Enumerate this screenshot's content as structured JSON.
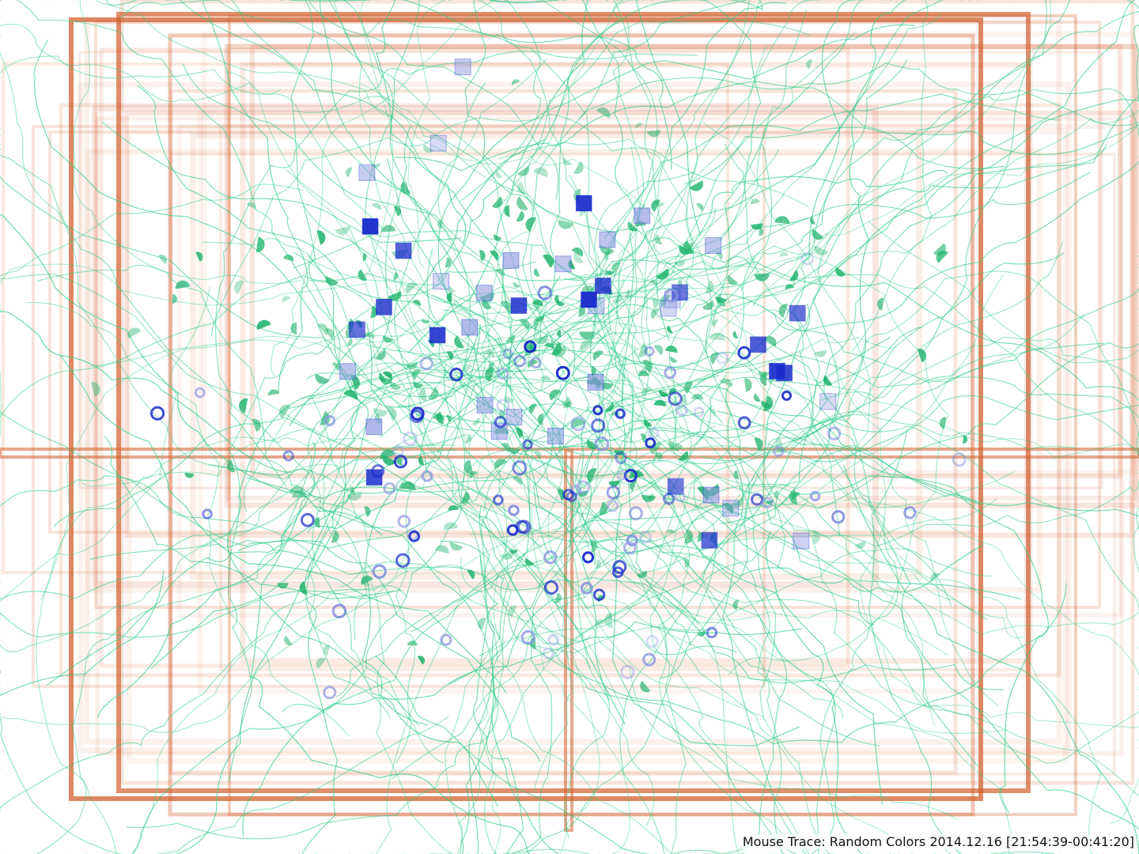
{
  "caption": "Mouse Trace: Random Colors 2014.12.16 [21:54:39-00:41:20]",
  "colors": {
    "background": "#ffffff",
    "window_frame": "#d2602e",
    "trace": "#2ecc8a",
    "trace_dark": "#1fb36e",
    "click": "#1a2bcc",
    "click_light": "#8a95e0"
  },
  "legend_semantics": {
    "window_frame": "rectangle",
    "trace": "line",
    "pause": "half-disc",
    "click": "ring",
    "drag": "square"
  }
}
